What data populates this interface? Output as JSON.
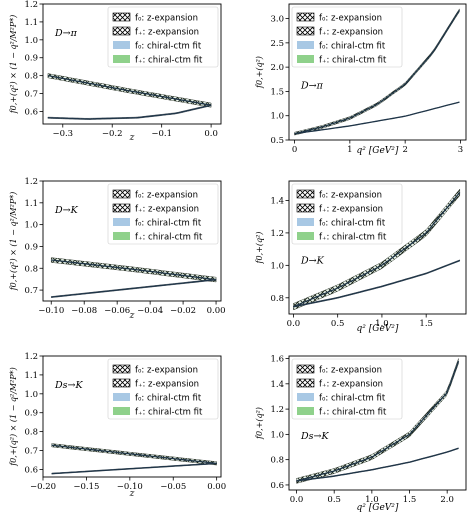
{
  "colors": {
    "axis": "#000000",
    "f0_band_fill": "#a8c8e4",
    "fplus_band_fill": "#8fd18b",
    "curve_line": "#1f3548",
    "hatch_fill": "#ffffff",
    "hatch_stroke": "#000000"
  },
  "legend_labels": {
    "f0_z": "f₀: z-expansion",
    "fplus_z": "f₊: z-expansion",
    "f0_chiral": "f₀: chiral-ctm fit",
    "fplus_chiral": "f₊: chiral-ctm fit"
  },
  "chart_data": [
    {
      "id": "d_pi_z",
      "type": "line",
      "annotation": "D→π",
      "xlabel": "z",
      "ylabel": "f0,+(q²) × (1 − q²/M²P*)",
      "xlim": [
        -0.34,
        0.02
      ],
      "ylim": [
        0.53,
        1.2
      ],
      "xticks": [
        -0.3,
        -0.2,
        -0.1,
        0.0
      ],
      "xtick_labels": [
        "−0.3",
        "−0.2",
        "−0.1",
        "0.0"
      ],
      "yticks": [
        0.6,
        0.7,
        0.8,
        0.9,
        1.0,
        1.1,
        1.2
      ],
      "ytick_labels": [
        "0.6",
        "0.7",
        "0.8",
        "0.9",
        "1.0",
        "1.1",
        "1.2"
      ],
      "legend_position": "top-right",
      "series": [
        {
          "name": "f+",
          "x": [
            -0.33,
            -0.165,
            0.0
          ],
          "y": [
            0.8,
            0.715,
            0.635
          ],
          "band": 0.012
        },
        {
          "name": "f0",
          "x": [
            -0.33,
            -0.25,
            -0.15,
            -0.07,
            0.0
          ],
          "y": [
            0.565,
            0.558,
            0.565,
            0.59,
            0.635
          ],
          "band": 0.004
        }
      ]
    },
    {
      "id": "d_pi_q2",
      "type": "line",
      "annotation": "D→π",
      "xlabel": "q² [GeV²]",
      "ylabel": "f0,+(q²)",
      "xlim": [
        -0.1,
        3.1
      ],
      "ylim": [
        0.5,
        3.3
      ],
      "xticks": [
        0,
        1,
        2,
        3
      ],
      "xtick_labels": [
        "0",
        "1",
        "2",
        "3"
      ],
      "yticks": [
        0.5,
        1.0,
        1.5,
        2.0,
        2.5,
        3.0
      ],
      "ytick_labels": [
        "0.5",
        "1.0",
        "1.5",
        "2.0",
        "2.5",
        "3.0"
      ],
      "legend_position": "top-left",
      "series": [
        {
          "name": "f+",
          "x": [
            0.0,
            0.5,
            1.0,
            1.5,
            2.0,
            2.5,
            2.98
          ],
          "y": [
            0.63,
            0.77,
            0.95,
            1.24,
            1.65,
            2.3,
            3.17
          ],
          "band": 0.03
        },
        {
          "name": "f0",
          "x": [
            0.0,
            1.0,
            2.0,
            2.98
          ],
          "y": [
            0.63,
            0.79,
            0.99,
            1.28
          ],
          "band": 0.005
        }
      ]
    },
    {
      "id": "d_k_z",
      "type": "line",
      "annotation": "D→K",
      "xlabel": "z",
      "ylabel": "f0,+(q²) × (1 − q²/M²P*)",
      "xlim": [
        -0.105,
        0.003
      ],
      "ylim": [
        0.65,
        1.2
      ],
      "xticks": [
        -0.1,
        -0.08,
        -0.06,
        -0.04,
        -0.02,
        0.0
      ],
      "xtick_labels": [
        "−0.10",
        "−0.08",
        "−0.06",
        "−0.04",
        "−0.02",
        "0.00"
      ],
      "yticks": [
        0.7,
        0.8,
        0.9,
        1.0,
        1.1,
        1.2
      ],
      "ytick_labels": [
        "0.7",
        "0.8",
        "0.9",
        "1.0",
        "1.1",
        "1.2"
      ],
      "legend_position": "top-right",
      "series": [
        {
          "name": "f+",
          "x": [
            -0.1,
            -0.05,
            0.0
          ],
          "y": [
            0.838,
            0.795,
            0.748
          ],
          "band": 0.011
        },
        {
          "name": "f0",
          "x": [
            -0.1,
            -0.05,
            0.0
          ],
          "y": [
            0.668,
            0.708,
            0.748
          ],
          "band": 0.003
        }
      ]
    },
    {
      "id": "d_k_q2",
      "type": "line",
      "annotation": "D→K",
      "xlabel": "q² [GeV²]",
      "ylabel": "f0,+(q²)",
      "xlim": [
        -0.05,
        1.95
      ],
      "ylim": [
        0.7,
        1.52
      ],
      "xticks": [
        0.0,
        0.5,
        1.0,
        1.5
      ],
      "xtick_labels": [
        "0.0",
        "0.5",
        "1.0",
        "1.5"
      ],
      "yticks": [
        0.8,
        1.0,
        1.2,
        1.4
      ],
      "ytick_labels": [
        "0.8",
        "1.0",
        "1.2",
        "1.4"
      ],
      "legend_position": "top-left",
      "series": [
        {
          "name": "f+",
          "x": [
            0.0,
            0.5,
            1.0,
            1.5,
            1.88
          ],
          "y": [
            0.745,
            0.86,
            1.0,
            1.2,
            1.45
          ],
          "band": 0.02
        },
        {
          "name": "f0",
          "x": [
            0.0,
            0.5,
            1.0,
            1.5,
            1.88
          ],
          "y": [
            0.745,
            0.8,
            0.87,
            0.95,
            1.03
          ],
          "band": 0.004
        }
      ]
    },
    {
      "id": "ds_k_z",
      "type": "line",
      "annotation": "Ds→K",
      "xlabel": "z",
      "ylabel": "f0,+(q²) × (1 − q²/M²P*)",
      "xlim": [
        -0.2,
        0.005
      ],
      "ylim": [
        0.56,
        1.2
      ],
      "xticks": [
        -0.2,
        -0.15,
        -0.1,
        -0.05,
        0.0
      ],
      "xtick_labels": [
        "−0.20",
        "−0.15",
        "−0.10",
        "−0.05",
        "0.00"
      ],
      "yticks": [
        0.6,
        0.7,
        0.8,
        0.9,
        1.0,
        1.1,
        1.2
      ],
      "ytick_labels": [
        "0.6",
        "0.7",
        "0.8",
        "0.9",
        "1.0",
        "1.1",
        "1.2"
      ],
      "legend_position": "top-right",
      "series": [
        {
          "name": "f+",
          "x": [
            -0.19,
            -0.095,
            0.0
          ],
          "y": [
            0.728,
            0.68,
            0.632
          ],
          "band": 0.009
        },
        {
          "name": "f0",
          "x": [
            -0.19,
            -0.095,
            0.0
          ],
          "y": [
            0.578,
            0.605,
            0.632
          ],
          "band": 0.003
        }
      ]
    },
    {
      "id": "ds_k_q2",
      "type": "line",
      "annotation": "Ds→K",
      "xlabel": "q² [GeV²]",
      "ylabel": "f0,+(q²)",
      "xlim": [
        -0.1,
        2.25
      ],
      "ylim": [
        0.56,
        1.62
      ],
      "xticks": [
        0.0,
        0.5,
        1.0,
        1.5,
        2.0
      ],
      "xtick_labels": [
        "0.0",
        "0.5",
        "1.0",
        "1.5",
        "2.0"
      ],
      "yticks": [
        0.6,
        0.8,
        1.0,
        1.2,
        1.4,
        1.6
      ],
      "ytick_labels": [
        "0.6",
        "0.8",
        "1.0",
        "1.2",
        "1.4",
        "1.6"
      ],
      "legend_position": "top-left",
      "series": [
        {
          "name": "f+",
          "x": [
            0.0,
            0.5,
            1.0,
            1.5,
            2.0,
            2.15
          ],
          "y": [
            0.632,
            0.71,
            0.82,
            1.0,
            1.33,
            1.58
          ],
          "band": 0.02
        },
        {
          "name": "f0",
          "x": [
            0.0,
            0.5,
            1.0,
            1.5,
            2.0,
            2.15
          ],
          "y": [
            0.632,
            0.67,
            0.72,
            0.78,
            0.86,
            0.89
          ],
          "band": 0.004
        }
      ]
    }
  ]
}
